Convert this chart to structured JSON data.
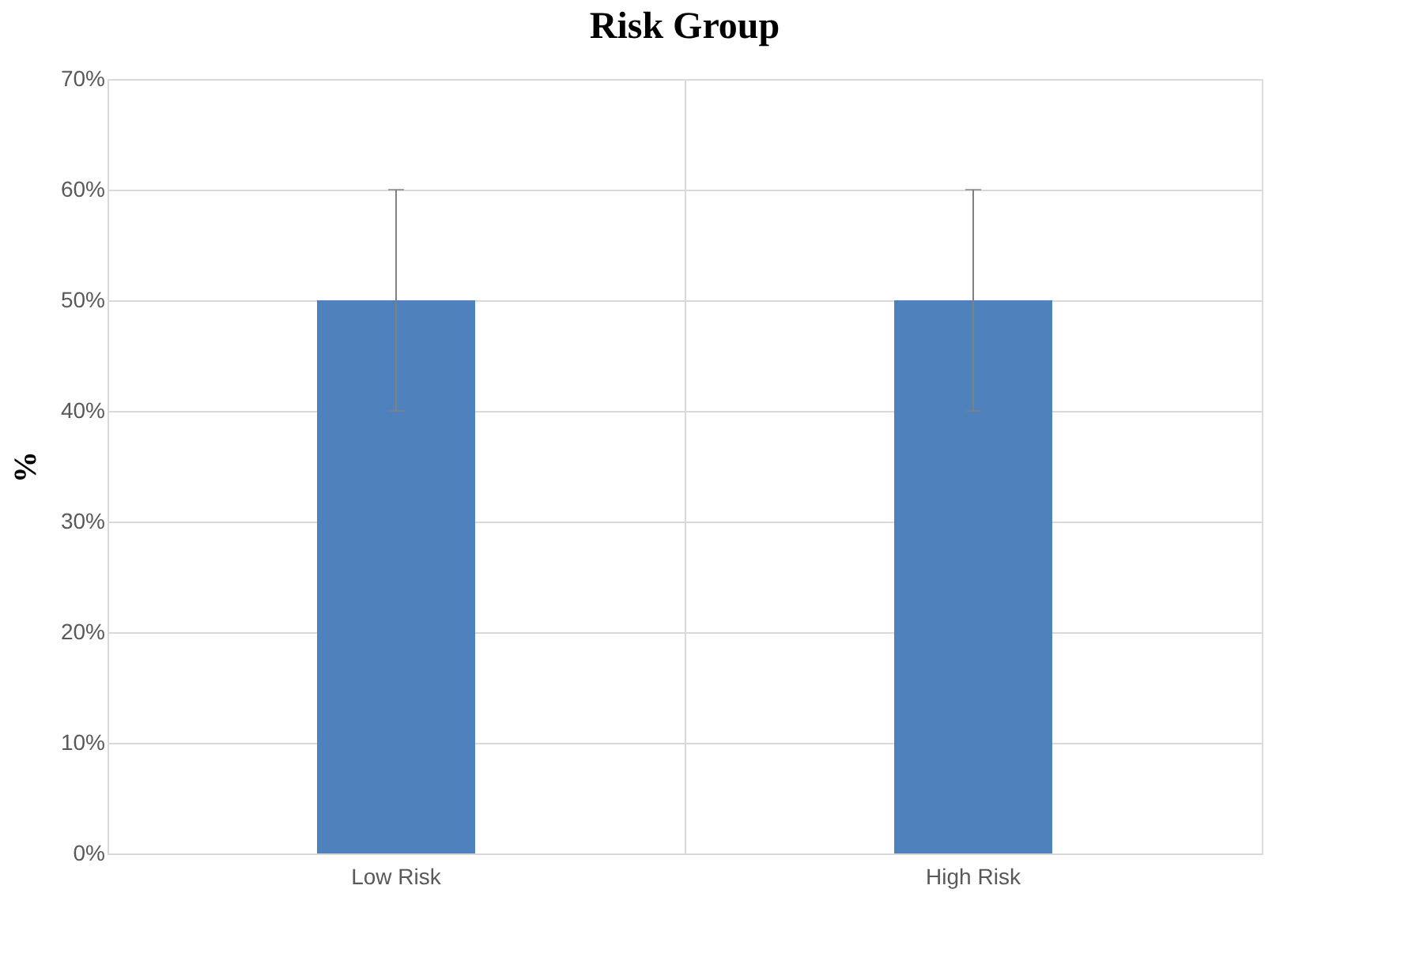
{
  "chart_data": {
    "type": "bar",
    "title": "Risk Group",
    "ylabel": "%",
    "categories": [
      "Low Risk",
      "High Risk"
    ],
    "values": [
      50,
      50
    ],
    "errors": [
      10,
      10
    ],
    "color": "#4f81bd",
    "ylim": [
      0,
      70
    ],
    "yticks": [
      {
        "value": 0,
        "label": "0%"
      },
      {
        "value": 10,
        "label": "10%"
      },
      {
        "value": 20,
        "label": "20%"
      },
      {
        "value": 30,
        "label": "30%"
      },
      {
        "value": 40,
        "label": "40%"
      },
      {
        "value": 50,
        "label": "50%"
      },
      {
        "value": 60,
        "label": "60%"
      },
      {
        "value": 70,
        "label": "70%"
      }
    ],
    "grid": true
  }
}
